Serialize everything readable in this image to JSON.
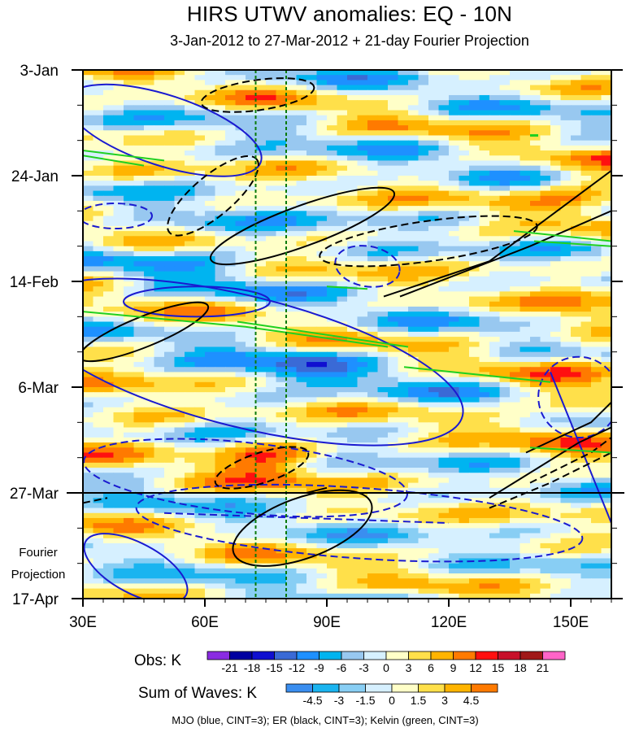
{
  "chart_data": {
    "type": "heatmap",
    "title": "HIRS UTWV anomalies: EQ - 10N",
    "subtitle": "3-Jan-2012 to 27-Mar-2012 + 21-day Fourier Projection",
    "x_axis": {
      "range_degE": [
        30,
        160
      ],
      "ticks": [
        30,
        60,
        90,
        120,
        150
      ],
      "tick_labels": [
        "30E",
        "60E",
        "90E",
        "120E",
        "150E"
      ]
    },
    "y_axis": {
      "tick_labels": [
        "3-Jan",
        "24-Jan",
        "14-Feb",
        "6-Mar",
        "27-Mar",
        "17-Apr"
      ],
      "tick_days": [
        0,
        21,
        42,
        63,
        84,
        105
      ],
      "observation_end_day": 84
    },
    "projection_label": [
      "Fourier",
      "Projection"
    ],
    "reference_longitudes_degE": [
      72.5,
      80
    ],
    "obs_colorbar": {
      "title": "Obs: K",
      "levels": [
        "-21",
        "-18",
        "-15",
        "-12",
        "-9",
        "-6",
        "-3",
        "0",
        "3",
        "6",
        "9",
        "12",
        "15",
        "18",
        "21"
      ],
      "colors": [
        "#8a2be2",
        "#0000a0",
        "#1010d0",
        "#3a6ad6",
        "#1e90ff",
        "#00b4f0",
        "#98c8f0",
        "#d6f0ff",
        "#ffffc8",
        "#ffe04a",
        "#ffb400",
        "#ff7a00",
        "#ff1010",
        "#c8102a",
        "#a01818",
        "#ff64c8"
      ]
    },
    "waves_colorbar": {
      "title": "Sum of Waves: K",
      "levels": [
        "-4.5",
        "-3",
        "-1.5",
        "0",
        "1.5",
        "3",
        "4.5"
      ],
      "colors": [
        "#3a8ef0",
        "#1ab4f0",
        "#88cef4",
        "#d6f0ff",
        "#ffffc8",
        "#ffe04a",
        "#ffb400",
        "#ff7a00"
      ]
    },
    "contours": {
      "caption": "MJO (blue, CINT=3); ER (black, CINT=3); Kelvin (green, CINT=3)",
      "series": [
        {
          "name": "MJO",
          "color": "#1a1ad0",
          "cint": 3
        },
        {
          "name": "ER",
          "color": "#000000",
          "cint": 3
        },
        {
          "name": "Kelvin",
          "color": "#20d020",
          "cint": 3
        }
      ]
    }
  }
}
